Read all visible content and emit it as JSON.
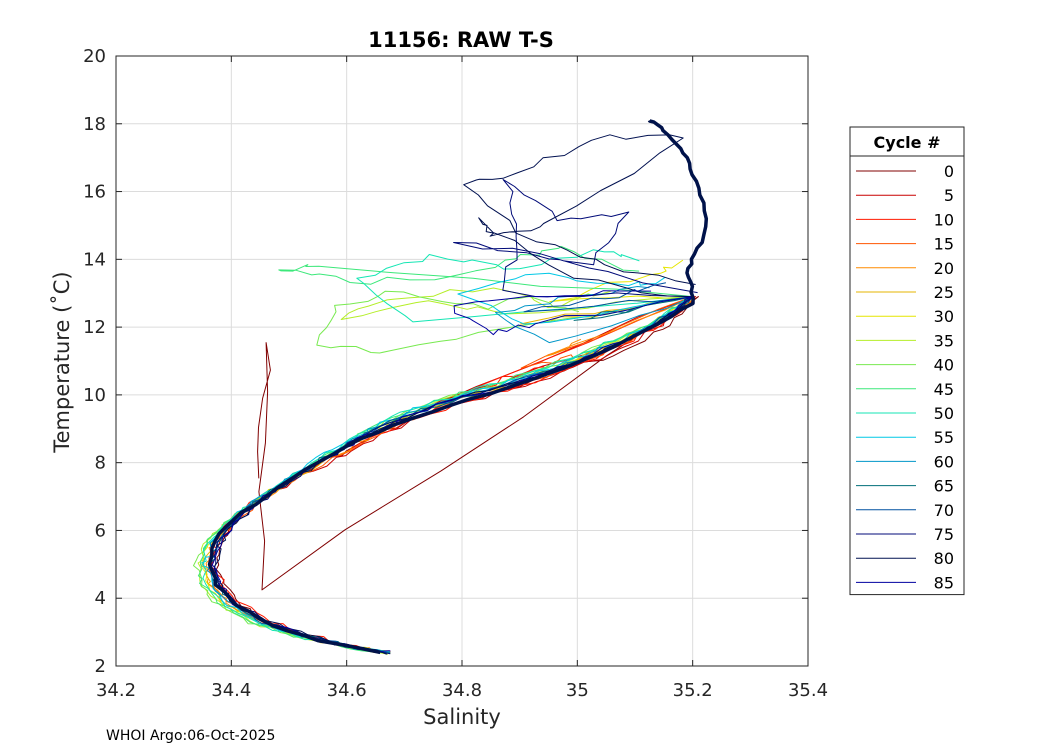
{
  "chart_data": {
    "type": "line",
    "title": "11156: RAW T-S",
    "xlabel": "Salinity",
    "ylabel": "Temperature (˚C)",
    "xlim": [
      34.2,
      35.4
    ],
    "ylim": [
      2,
      20
    ],
    "xticks": [
      34.2,
      34.4,
      34.6,
      34.8,
      35,
      35.2,
      35.4
    ],
    "xtick_labels": [
      "34.2",
      "34.4",
      "34.6",
      "34.8",
      "35",
      "35.2",
      "35.4"
    ],
    "yticks": [
      2,
      4,
      6,
      8,
      10,
      12,
      14,
      16,
      18,
      20
    ],
    "ytick_labels": [
      "2",
      "4",
      "6",
      "8",
      "10",
      "12",
      "14",
      "16",
      "18",
      "20"
    ],
    "grid": true,
    "legend": {
      "title": "Cycle #",
      "placement": "right-outside",
      "entries": [
        {
          "label": "0",
          "color": "#800000"
        },
        {
          "label": "5",
          "color": "#c80000"
        },
        {
          "label": "10",
          "color": "#ff1a00"
        },
        {
          "label": "15",
          "color": "#ff5500"
        },
        {
          "label": "20",
          "color": "#ff8c00"
        },
        {
          "label": "25",
          "color": "#e6b400"
        },
        {
          "label": "30",
          "color": "#e6e600"
        },
        {
          "label": "35",
          "color": "#b4ee28"
        },
        {
          "label": "40",
          "color": "#78ea50"
        },
        {
          "label": "45",
          "color": "#3ce87a"
        },
        {
          "label": "50",
          "color": "#14e6b4"
        },
        {
          "label": "55",
          "color": "#00c8e6"
        },
        {
          "label": "60",
          "color": "#0096c8"
        },
        {
          "label": "65",
          "color": "#006e78"
        },
        {
          "label": "70",
          "color": "#0050a0"
        },
        {
          "label": "75",
          "color": "#000a78"
        },
        {
          "label": "80",
          "color": "#001050"
        },
        {
          "label": "85",
          "color": "#0000a0"
        }
      ]
    },
    "profile_spine": [
      [
        34.67,
        2.4
      ],
      [
        34.6,
        2.6
      ],
      [
        34.53,
        2.9
      ],
      [
        34.46,
        3.3
      ],
      [
        34.41,
        3.8
      ],
      [
        34.38,
        4.4
      ],
      [
        34.37,
        5.0
      ],
      [
        34.375,
        5.6
      ],
      [
        34.4,
        6.2
      ],
      [
        34.44,
        6.8
      ],
      [
        34.5,
        7.5
      ],
      [
        34.56,
        8.1
      ],
      [
        34.62,
        8.7
      ],
      [
        34.68,
        9.2
      ],
      [
        34.76,
        9.7
      ],
      [
        34.85,
        10.15
      ],
      [
        34.95,
        10.65
      ],
      [
        35.03,
        11.2
      ],
      [
        35.1,
        11.8
      ],
      [
        35.16,
        12.4
      ],
      [
        35.2,
        12.9
      ]
    ],
    "series": [
      {
        "name": "0",
        "color": "#800000",
        "offsets": [
          0.004,
          0.003,
          0.003,
          0.004,
          0.006,
          0.008,
          0.006,
          0.004,
          0.002,
          0.0,
          0.004,
          0.01,
          0.016,
          0.02,
          0.022,
          0.024,
          0.026,
          0.03,
          0.03,
          0.02,
          0.01
        ],
        "extra": [
          [
            34.45,
            4.2
          ],
          [
            34.455,
            11.5
          ],
          [
            34.45,
            7.5
          ]
        ]
      },
      {
        "name": "5",
        "color": "#c80000",
        "offsets": [
          0.0,
          0.002,
          0.006,
          0.004,
          0.0,
          -0.004,
          -0.002,
          0.002,
          0.0,
          0.004,
          0.012,
          0.018,
          0.022,
          0.03,
          0.034,
          0.03,
          0.028,
          0.024,
          0.018,
          0.01,
          0.005
        ],
        "extra": [
          [
            34.73,
            9.5
          ],
          [
            34.9,
            10.6
          ],
          [
            35.05,
            11.45
          ]
        ]
      },
      {
        "name": "10",
        "color": "#ff1a00",
        "offsets": [
          0.0,
          0.005,
          0.01,
          0.012,
          0.01,
          0.006,
          0.0,
          -0.006,
          -0.01,
          -0.006,
          0.004,
          0.01,
          0.014,
          0.024,
          0.03,
          0.026,
          0.022,
          0.016,
          0.012,
          0.008,
          0.004
        ],
        "extra": [
          [
            34.74,
            9.6
          ],
          [
            34.83,
            10.2
          ],
          [
            34.95,
            10.9
          ]
        ]
      },
      {
        "name": "15",
        "color": "#ff5500",
        "offsets": [
          0.0,
          -0.002,
          -0.004,
          -0.006,
          -0.008,
          -0.012,
          -0.01,
          -0.006,
          0.0,
          0.004,
          0.008,
          0.012,
          0.016,
          0.02,
          0.02,
          0.018,
          0.016,
          0.012,
          0.008,
          0.004,
          0.0
        ],
        "extra": [
          [
            34.9,
            10.7
          ],
          [
            34.98,
            11.0
          ],
          [
            35.02,
            11.2
          ]
        ]
      },
      {
        "name": "20",
        "color": "#ff8c00",
        "offsets": [
          0.0,
          -0.004,
          -0.008,
          -0.01,
          -0.014,
          -0.016,
          -0.012,
          -0.008,
          -0.004,
          0.0,
          0.004,
          0.008,
          0.012,
          0.014,
          0.012,
          0.008,
          0.0,
          -0.004,
          0.0,
          0.004,
          0.0
        ],
        "extra": [
          [
            34.95,
            11.1
          ],
          [
            35.0,
            11.6
          ]
        ]
      },
      {
        "name": "25",
        "color": "#e6b400",
        "offsets": [
          0.0,
          -0.006,
          -0.01,
          -0.014,
          -0.018,
          -0.02,
          -0.016,
          -0.01,
          -0.004,
          0.0,
          0.004,
          0.006,
          0.006,
          0.004,
          0.0,
          -0.004,
          -0.006,
          -0.004,
          0.0,
          0.004,
          0.0
        ],
        "extra": [
          [
            35.02,
            12.3
          ],
          [
            34.9,
            12.1
          ],
          [
            35.1,
            12.6
          ]
        ]
      },
      {
        "name": "30",
        "color": "#e6e600",
        "offsets": [
          0.0,
          -0.008,
          -0.014,
          -0.018,
          -0.022,
          -0.024,
          -0.02,
          -0.014,
          -0.008,
          -0.002,
          0.0,
          0.002,
          0.0,
          -0.004,
          -0.008,
          -0.01,
          -0.012,
          -0.008,
          -0.004,
          0.0,
          0.0
        ],
        "extra": [
          [
            34.95,
            12.8
          ],
          [
            35.13,
            13.6
          ],
          [
            35.18,
            13.9
          ]
        ]
      },
      {
        "name": "35",
        "color": "#b4ee28",
        "offsets": [
          -0.004,
          -0.012,
          -0.02,
          -0.024,
          -0.028,
          -0.03,
          -0.026,
          -0.02,
          -0.012,
          -0.006,
          -0.002,
          0.0,
          -0.004,
          -0.01,
          -0.014,
          -0.018,
          -0.02,
          -0.014,
          -0.008,
          -0.002,
          0.0
        ],
        "extra": [
          [
            34.88,
            12.3
          ],
          [
            34.75,
            12.7
          ],
          [
            34.6,
            12.2
          ],
          [
            34.68,
            12.9
          ],
          [
            34.85,
            13.2
          ],
          [
            34.95,
            12.6
          ],
          [
            35.05,
            13.1
          ]
        ]
      },
      {
        "name": "40",
        "color": "#78ea50",
        "offsets": [
          -0.004,
          -0.014,
          -0.022,
          -0.028,
          -0.032,
          -0.034,
          -0.03,
          -0.022,
          -0.014,
          -0.006,
          -0.002,
          -0.002,
          -0.008,
          -0.016,
          -0.02,
          -0.024,
          -0.026,
          -0.018,
          -0.01,
          -0.004,
          0.0
        ],
        "extra": [
          [
            34.82,
            11.8
          ],
          [
            34.65,
            11.2
          ],
          [
            34.55,
            11.5
          ],
          [
            34.58,
            12.6
          ],
          [
            34.7,
            13.1
          ],
          [
            34.85,
            12.5
          ],
          [
            34.92,
            12.9
          ],
          [
            35.0,
            12.4
          ]
        ]
      },
      {
        "name": "45",
        "color": "#3ce87a",
        "offsets": [
          -0.002,
          -0.012,
          -0.02,
          -0.026,
          -0.03,
          -0.03,
          -0.026,
          -0.02,
          -0.012,
          -0.004,
          -0.002,
          -0.004,
          -0.01,
          -0.02,
          -0.026,
          -0.03,
          -0.03,
          -0.022,
          -0.014,
          -0.006,
          0.0
        ],
        "extra": [
          [
            34.55,
            13.8
          ],
          [
            34.48,
            13.7
          ],
          [
            34.6,
            13.4
          ],
          [
            34.78,
            13.5
          ],
          [
            34.9,
            14.1
          ],
          [
            34.98,
            14.3
          ],
          [
            35.1,
            13.6
          ]
        ]
      },
      {
        "name": "50",
        "color": "#14e6b4",
        "offsets": [
          0.0,
          -0.01,
          -0.016,
          -0.02,
          -0.024,
          -0.024,
          -0.02,
          -0.016,
          -0.01,
          -0.006,
          -0.004,
          -0.008,
          -0.014,
          -0.022,
          -0.026,
          -0.028,
          -0.026,
          -0.018,
          -0.01,
          -0.004,
          0.0
        ],
        "extra": [
          [
            34.72,
            12.2
          ],
          [
            34.62,
            13.5
          ],
          [
            34.75,
            14.1
          ],
          [
            34.88,
            13.8
          ],
          [
            35.02,
            14.2
          ],
          [
            35.1,
            14.0
          ]
        ]
      },
      {
        "name": "55",
        "color": "#00c8e6",
        "offsets": [
          0.0,
          -0.006,
          -0.01,
          -0.014,
          -0.016,
          -0.016,
          -0.014,
          -0.01,
          -0.008,
          -0.006,
          -0.006,
          -0.01,
          -0.014,
          -0.018,
          -0.02,
          -0.02,
          -0.016,
          -0.012,
          -0.006,
          -0.002,
          0.0
        ],
        "extra": [
          [
            34.9,
            12.0
          ],
          [
            34.8,
            12.9
          ],
          [
            34.95,
            13.6
          ],
          [
            35.08,
            13.2
          ],
          [
            35.15,
            13.4
          ]
        ]
      },
      {
        "name": "60",
        "color": "#0096c8",
        "offsets": [
          0.0,
          -0.004,
          -0.006,
          -0.008,
          -0.01,
          -0.01,
          -0.008,
          -0.006,
          -0.004,
          -0.002,
          -0.002,
          -0.004,
          -0.006,
          -0.01,
          -0.012,
          -0.012,
          -0.01,
          -0.008,
          -0.004,
          0.0,
          0.0
        ],
        "extra": [
          [
            34.95,
            11.5
          ],
          [
            34.85,
            12.4
          ],
          [
            35.0,
            13.0
          ],
          [
            35.12,
            13.2
          ]
        ]
      },
      {
        "name": "65",
        "color": "#006e78",
        "offsets": [
          0.0,
          -0.002,
          -0.004,
          -0.004,
          -0.006,
          -0.006,
          -0.004,
          -0.004,
          -0.002,
          0.0,
          0.0,
          -0.002,
          -0.004,
          -0.006,
          -0.008,
          -0.008,
          -0.006,
          -0.004,
          -0.002,
          0.0,
          0.0
        ],
        "extra": [
          [
            35.0,
            12.2
          ],
          [
            35.1,
            12.6
          ]
        ]
      },
      {
        "name": "70",
        "color": "#0050a0",
        "offsets": [
          0.0,
          0.0,
          -0.002,
          -0.002,
          -0.002,
          -0.004,
          -0.002,
          0.0,
          0.0,
          0.002,
          0.002,
          0.0,
          -0.002,
          -0.004,
          -0.004,
          -0.004,
          -0.002,
          0.0,
          0.0,
          0.002,
          0.0
        ],
        "extra": [
          [
            34.9,
            12.5
          ],
          [
            35.05,
            12.9
          ],
          [
            35.15,
            13.3
          ]
        ]
      },
      {
        "name": "75",
        "color": "#000a78",
        "offsets": [
          0.0,
          0.002,
          0.002,
          0.0,
          0.0,
          -0.002,
          0.0,
          0.002,
          0.004,
          0.004,
          0.004,
          0.002,
          0.0,
          -0.002,
          -0.002,
          0.0,
          0.0,
          0.002,
          0.002,
          0.002,
          0.0
        ],
        "extra": [
          [
            34.87,
            13.0
          ],
          [
            34.9,
            14.6
          ],
          [
            34.88,
            16.4
          ],
          [
            34.97,
            15.2
          ],
          [
            35.09,
            15.4
          ],
          [
            35.02,
            13.8
          ],
          [
            34.78,
            14.5
          ],
          [
            34.98,
            14.0
          ],
          [
            35.2,
            13.0
          ]
        ]
      },
      {
        "name": "80",
        "color": "#001050",
        "offsets": [
          0.0,
          0.002,
          0.004,
          0.002,
          0.0,
          0.0,
          0.002,
          0.004,
          0.004,
          0.006,
          0.006,
          0.004,
          0.002,
          0.0,
          0.0,
          0.002,
          0.002,
          0.004,
          0.004,
          0.002,
          0.0
        ],
        "extra": [
          [
            35.0,
            13.4
          ],
          [
            34.82,
            15.2
          ],
          [
            34.85,
            14.6
          ],
          [
            34.95,
            15.0
          ],
          [
            35.19,
            17.6
          ],
          [
            35.02,
            17.6
          ],
          [
            34.9,
            16.5
          ],
          [
            34.8,
            16.2
          ],
          [
            34.92,
            14.5
          ],
          [
            35.05,
            13.8
          ],
          [
            35.2,
            13.2
          ]
        ]
      },
      {
        "name": "85",
        "color": "#0000a0",
        "offsets": [
          0.0,
          0.0,
          0.002,
          0.0,
          -0.002,
          0.0,
          0.002,
          0.002,
          0.004,
          0.004,
          0.004,
          0.004,
          0.002,
          0.002,
          0.0,
          0.0,
          0.002,
          0.002,
          0.002,
          0.002,
          0.0
        ],
        "extra": [
          [
            34.92,
            12.1
          ],
          [
            34.85,
            11.8
          ],
          [
            34.78,
            12.6
          ],
          [
            34.94,
            12.9
          ],
          [
            35.12,
            13.1
          ]
        ]
      }
    ],
    "highlight": {
      "name": "latest",
      "color": "#00124a",
      "points": [
        [
          34.66,
          2.4
        ],
        [
          34.55,
          2.75
        ],
        [
          34.47,
          3.2
        ],
        [
          34.41,
          3.8
        ],
        [
          34.375,
          4.4
        ],
        [
          34.365,
          5.0
        ],
        [
          34.37,
          5.7
        ],
        [
          34.4,
          6.3
        ],
        [
          34.46,
          7.0
        ],
        [
          34.53,
          7.8
        ],
        [
          34.6,
          8.5
        ],
        [
          34.68,
          9.1
        ],
        [
          34.78,
          9.7
        ],
        [
          34.88,
          10.2
        ],
        [
          34.98,
          10.8
        ],
        [
          35.06,
          11.4
        ],
        [
          35.14,
          12.1
        ],
        [
          35.2,
          12.7
        ],
        [
          35.2,
          13.2
        ],
        [
          35.19,
          13.6
        ],
        [
          35.2,
          14.0
        ],
        [
          35.215,
          14.5
        ],
        [
          35.225,
          15.2
        ],
        [
          35.215,
          15.9
        ],
        [
          35.2,
          16.5
        ],
        [
          35.19,
          17.0
        ],
        [
          35.17,
          17.4
        ],
        [
          35.15,
          17.8
        ],
        [
          35.135,
          18.05
        ],
        [
          35.125,
          18.1
        ]
      ]
    }
  },
  "footer": {
    "text": "WHOI Argo:06-Oct-2025"
  }
}
